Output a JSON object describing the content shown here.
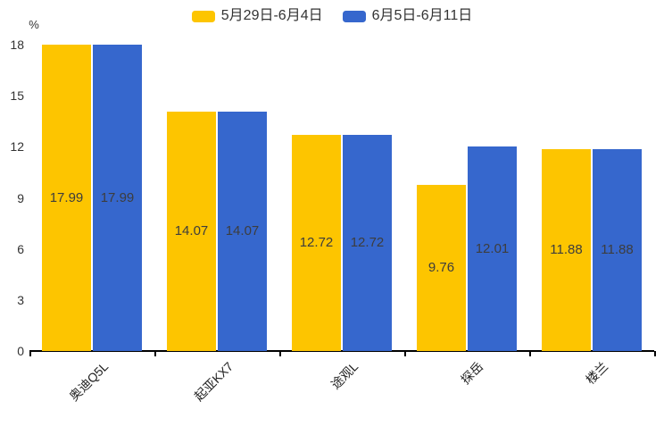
{
  "chart_data": {
    "type": "bar",
    "title": "",
    "y_unit_label": "%",
    "categories": [
      "奥迪Q5L",
      "起亚KX7",
      "途观L",
      "探岳",
      "楼兰"
    ],
    "series": [
      {
        "name": "5月29日-6月4日",
        "color": "#FDC500",
        "values": [
          17.99,
          14.07,
          12.72,
          9.76,
          11.88
        ]
      },
      {
        "name": "6月5日-6月11日",
        "color": "#3667CD",
        "values": [
          17.99,
          14.07,
          12.72,
          12.01,
          11.88
        ]
      }
    ],
    "value_labels": [
      [
        "17.99",
        "14.07",
        "12.72",
        "9.76",
        "11.88"
      ],
      [
        "17.99",
        "14.07",
        "12.72",
        "12.01",
        "11.88"
      ]
    ],
    "ylim": [
      0,
      18
    ],
    "yticks": [
      0,
      3,
      6,
      9,
      12,
      15,
      18
    ],
    "grid": false,
    "legend_position": "top",
    "value_label_position": "inside-center"
  }
}
